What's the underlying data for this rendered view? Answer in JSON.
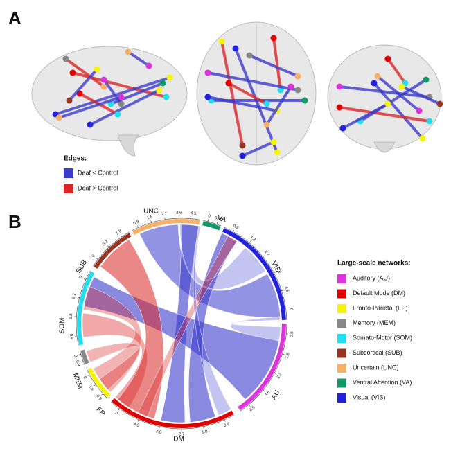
{
  "panels": [
    "A",
    "B"
  ],
  "edges_legend": {
    "title": "Edges:",
    "items": [
      {
        "label": "Deaf < Control",
        "color": "#3b3bcc"
      },
      {
        "label": "Deaf > Control",
        "color": "#d92626"
      }
    ]
  },
  "networks_legend": {
    "title": "Large-scale networks:",
    "items": [
      {
        "label": "Auditory (AU)",
        "color": "#dd33dd"
      },
      {
        "label": "Default Mode (DM)",
        "color": "#e00000"
      },
      {
        "label": "Fronto-Parietal (FP)",
        "color": "#f5f500"
      },
      {
        "label": "Memory (MEM)",
        "color": "#888888"
      },
      {
        "label": "Somato-Motor (SOM)",
        "color": "#22ddee"
      },
      {
        "label": "Subcortical (SUB)",
        "color": "#993322"
      },
      {
        "label": "Uncertain (UNC)",
        "color": "#f7b066"
      },
      {
        "label": "Ventral Attention (VA)",
        "color": "#119966"
      },
      {
        "label": "Visual (VIS)",
        "color": "#2222dd"
      }
    ]
  },
  "chord": {
    "sectors": [
      {
        "name": "UNC",
        "color": "#f7b066",
        "ticks": [
          "0.9",
          "1.8",
          "2.7",
          "3.6",
          "4.5"
        ]
      },
      {
        "name": "VA",
        "color": "#119966",
        "ticks": [
          "0",
          "0.90"
        ]
      },
      {
        "name": "VIS",
        "color": "#2222dd",
        "ticks": [
          "0.9",
          "1.8",
          "2.7",
          "3.6",
          "4.5",
          "0"
        ]
      },
      {
        "name": "AU",
        "color": "#dd33dd",
        "ticks": [
          "0.9",
          "1.8",
          "2.7",
          "3.6",
          "4.5"
        ]
      },
      {
        "name": "DM",
        "color": "#e00000",
        "ticks": [
          "0.9",
          "1.8",
          "2.7",
          "3.6",
          "4.5",
          "0"
        ]
      },
      {
        "name": "FP",
        "color": "#f5f500",
        "ticks": [
          "0.9",
          "1.8",
          "0"
        ]
      },
      {
        "name": "MEM",
        "color": "#888888",
        "ticks": [
          "0.9",
          "0"
        ]
      },
      {
        "name": "SOM",
        "color": "#22ddee",
        "ticks": [
          "0.9",
          "1.8",
          "2.7",
          "0"
        ]
      },
      {
        "name": "SUB",
        "color": "#993322",
        "ticks": [
          "0",
          "0.9",
          "1.8"
        ]
      }
    ]
  }
}
